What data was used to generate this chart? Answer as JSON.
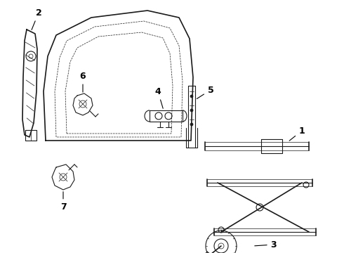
{
  "background_color": "#ffffff",
  "line_color": "#1a1a1a",
  "label_color": "#000000",
  "figsize": [
    4.9,
    3.6
  ],
  "dpi": 100
}
